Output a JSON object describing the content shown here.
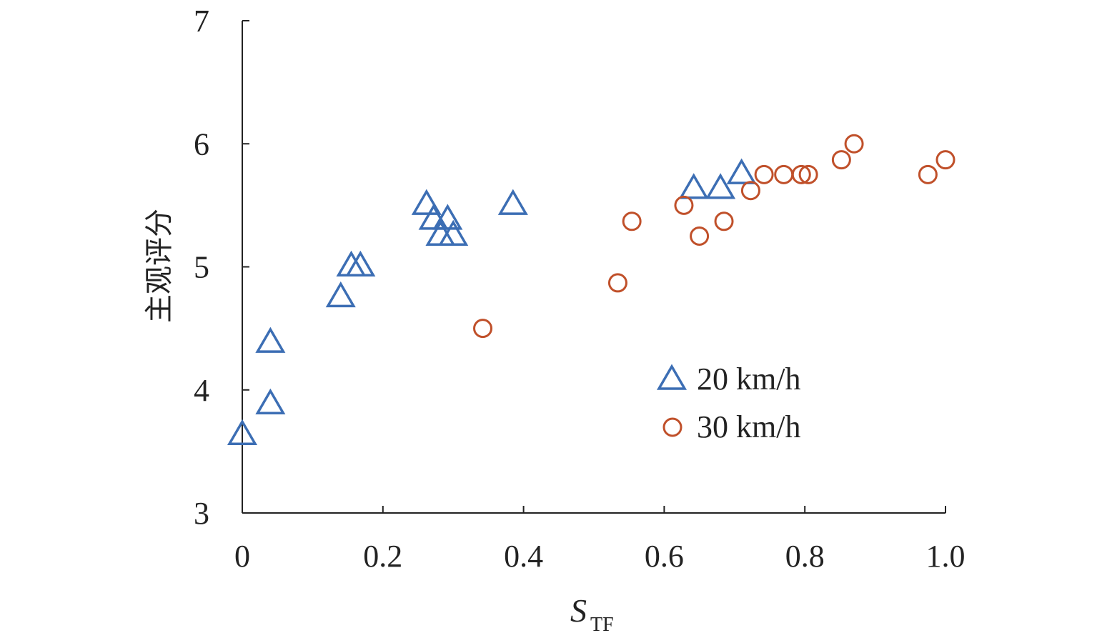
{
  "chart_data": {
    "type": "scatter",
    "title": "",
    "xlabel": "S",
    "xlabel_subscript": "TF",
    "ylabel": "主观评分",
    "xlim": [
      0,
      1.0
    ],
    "ylim": [
      3,
      7
    ],
    "x_ticks": [
      {
        "value": 0,
        "label": "0"
      },
      {
        "value": 0.2,
        "label": "0.2"
      },
      {
        "value": 0.4,
        "label": "0.4"
      },
      {
        "value": 0.6,
        "label": "0.6"
      },
      {
        "value": 0.8,
        "label": "0.8"
      },
      {
        "value": 1.0,
        "label": "1.0"
      }
    ],
    "y_ticks": [
      {
        "value": 3,
        "label": "3"
      },
      {
        "value": 4,
        "label": "4"
      },
      {
        "value": 5,
        "label": "5"
      },
      {
        "value": 6,
        "label": "6"
      },
      {
        "value": 7,
        "label": "7"
      }
    ],
    "grid": false,
    "legend_position": "center-right",
    "series": [
      {
        "name": "20 km/h",
        "marker": "triangle",
        "color": "#3c6eb4",
        "points": [
          {
            "x": 0.0,
            "y": 3.63
          },
          {
            "x": 0.04,
            "y": 3.88
          },
          {
            "x": 0.04,
            "y": 4.38
          },
          {
            "x": 0.14,
            "y": 4.75
          },
          {
            "x": 0.155,
            "y": 5.0
          },
          {
            "x": 0.168,
            "y": 5.0
          },
          {
            "x": 0.262,
            "y": 5.5
          },
          {
            "x": 0.272,
            "y": 5.38
          },
          {
            "x": 0.282,
            "y": 5.25
          },
          {
            "x": 0.292,
            "y": 5.38
          },
          {
            "x": 0.3,
            "y": 5.25
          },
          {
            "x": 0.385,
            "y": 5.5
          },
          {
            "x": 0.642,
            "y": 5.63
          },
          {
            "x": 0.68,
            "y": 5.63
          },
          {
            "x": 0.71,
            "y": 5.75
          }
        ]
      },
      {
        "name": "30 km/h",
        "marker": "circle",
        "color": "#c0502a",
        "points": [
          {
            "x": 0.342,
            "y": 4.5
          },
          {
            "x": 0.534,
            "y": 4.87
          },
          {
            "x": 0.554,
            "y": 5.37
          },
          {
            "x": 0.628,
            "y": 5.5
          },
          {
            "x": 0.65,
            "y": 5.25
          },
          {
            "x": 0.685,
            "y": 5.37
          },
          {
            "x": 0.723,
            "y": 5.62
          },
          {
            "x": 0.742,
            "y": 5.75
          },
          {
            "x": 0.77,
            "y": 5.75
          },
          {
            "x": 0.795,
            "y": 5.75
          },
          {
            "x": 0.805,
            "y": 5.75
          },
          {
            "x": 0.852,
            "y": 5.87
          },
          {
            "x": 0.87,
            "y": 6.0
          },
          {
            "x": 0.975,
            "y": 5.75
          },
          {
            "x": 1.0,
            "y": 5.87
          }
        ]
      }
    ]
  }
}
